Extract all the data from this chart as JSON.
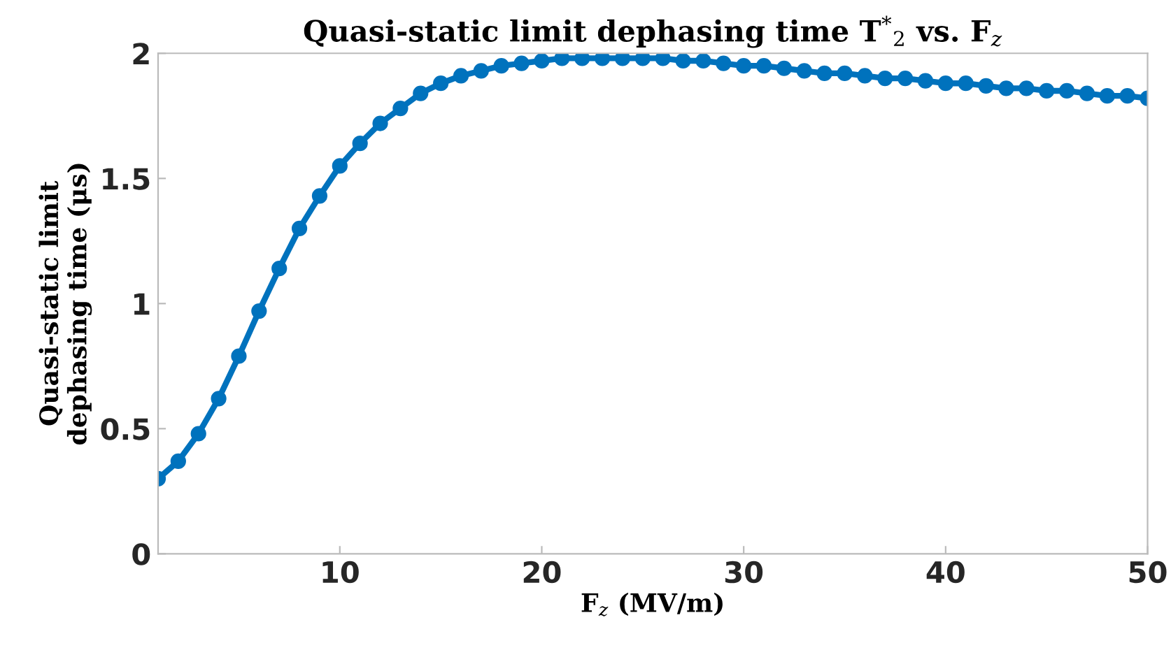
{
  "chart_data": {
    "type": "line",
    "title": "Quasi-static limit dephasing time T$^{*}$$_{2}$ vs. F$_{z}$",
    "xlabel": "F$_{z}$ (MV/m)",
    "ylabel": "Quasi-static limit\ndephasing time (μs)",
    "x": [
      1,
      2,
      3,
      4,
      5,
      6,
      7,
      8,
      9,
      10,
      11,
      12,
      13,
      14,
      15,
      16,
      17,
      18,
      19,
      20,
      21,
      22,
      23,
      24,
      25,
      26,
      27,
      28,
      29,
      30,
      31,
      32,
      33,
      34,
      35,
      36,
      37,
      38,
      39,
      40,
      41,
      42,
      43,
      44,
      45,
      46,
      47,
      48,
      49,
      50
    ],
    "series": [
      {
        "color": "#0072bd",
        "values": [
          0.3,
          0.37,
          0.48,
          0.62,
          0.79,
          0.97,
          1.14,
          1.3,
          1.43,
          1.55,
          1.64,
          1.72,
          1.78,
          1.84,
          1.88,
          1.91,
          1.93,
          1.95,
          1.96,
          1.97,
          1.98,
          1.98,
          1.98,
          1.98,
          1.98,
          1.98,
          1.97,
          1.97,
          1.96,
          1.95,
          1.95,
          1.94,
          1.93,
          1.92,
          1.92,
          1.91,
          1.9,
          1.9,
          1.89,
          1.88,
          1.88,
          1.87,
          1.86,
          1.86,
          1.85,
          1.85,
          1.84,
          1.83,
          1.83,
          1.82
        ]
      }
    ],
    "xlim": [
      1,
      50
    ],
    "xticks": [
      10,
      20,
      30,
      40,
      50
    ],
    "ylim": [
      0,
      2
    ],
    "yticks": [
      0,
      0.5,
      1,
      1.5,
      2
    ],
    "grid": false,
    "legend": false,
    "marker": "circle",
    "line_style": "solid"
  }
}
